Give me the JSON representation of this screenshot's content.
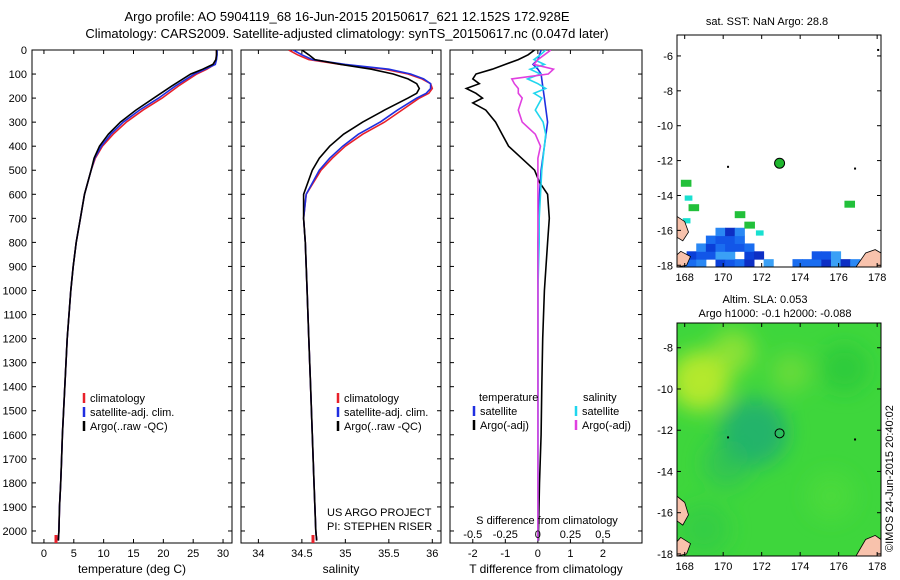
{
  "header": {
    "line1": "Argo profile: AO 5904119_68 16-Jun-2015 20150617_621 12.152S 172.928E",
    "line2": "Climatology: CARS2009. Satellite-adjusted climatology: synTS_20150617.nc (0.047d later)"
  },
  "footer": {
    "project": "US ARGO PROJECT",
    "pi": "PI: STEPHEN RISER",
    "stamp": "©IMOS 24-Jun-2015 20:40:02"
  },
  "colors": {
    "climatology": "#e8202a",
    "satellite": "#1f2ee0",
    "argo": "#000000",
    "sat_salinity": "#20d6ee",
    "argo_salinity": "#e040e0",
    "land": "#f8c2ac"
  },
  "depth_ticks": [
    "0",
    "100",
    "200",
    "300",
    "400",
    "500",
    "600",
    "700",
    "800",
    "900",
    "1000",
    "1100",
    "1200",
    "1300",
    "1400",
    "1500",
    "1600",
    "1700",
    "1800",
    "1900",
    "2000"
  ],
  "chart_data": [
    {
      "type": "line",
      "id": "temperature",
      "xlabel": "temperature (deg C)",
      "x_ticks": [
        "0",
        "5",
        "10",
        "15",
        "20",
        "25",
        "30"
      ],
      "xlim": [
        -2,
        31.5
      ],
      "ylim": [
        0,
        2050
      ],
      "legend": [
        "climatology",
        "satellite-adj. clim.",
        "Argo(..raw -QC)"
      ],
      "legend_position": "lower-center",
      "series": [
        {
          "name": "climatology",
          "color": "climatology",
          "depth": [
            0,
            20,
            40,
            60,
            80,
            100,
            150,
            200,
            250,
            300,
            350,
            400,
            450,
            500,
            600,
            700,
            800,
            900,
            1000,
            1100,
            1200,
            1300,
            1400,
            1500,
            1600,
            1700,
            1800,
            1900,
            2000,
            2040
          ],
          "values": [
            28.9,
            28.9,
            28.8,
            28.6,
            27.3,
            25.6,
            22.5,
            19.8,
            16.6,
            13.8,
            11.6,
            9.8,
            8.6,
            7.9,
            6.8,
            6.1,
            5.4,
            4.9,
            4.5,
            4.2,
            3.9,
            3.7,
            3.5,
            3.3,
            3.1,
            2.95,
            2.8,
            2.6,
            2.5,
            2.4
          ]
        },
        {
          "name": "satellite-adj. clim.",
          "color": "satellite",
          "depth": [
            0,
            20,
            40,
            60,
            80,
            100,
            150,
            200,
            250,
            300,
            350,
            400,
            450,
            500,
            600,
            700,
            800,
            900,
            1000,
            1100,
            1200,
            1300,
            1400,
            1500,
            1600,
            1700,
            1800,
            1900,
            2000,
            2040
          ],
          "values": [
            29.0,
            29.0,
            28.9,
            28.7,
            27.0,
            25.2,
            22.0,
            19.2,
            16.0,
            13.3,
            11.2,
            9.6,
            8.5,
            7.9,
            6.8,
            6.1,
            5.4,
            4.9,
            4.5,
            4.2,
            3.9,
            3.7,
            3.5,
            3.3,
            3.1,
            2.95,
            2.8,
            2.6,
            2.5,
            2.4
          ]
        },
        {
          "name": "Argo(..raw -QC)",
          "color": "argo",
          "depth": [
            0,
            20,
            40,
            60,
            80,
            100,
            150,
            200,
            250,
            300,
            350,
            400,
            450,
            500,
            600,
            700,
            800,
            900,
            1000,
            1100,
            1200,
            1300,
            1400,
            1500,
            1600,
            1700,
            1800,
            1900,
            2000,
            2040
          ],
          "values": [
            28.9,
            28.9,
            28.8,
            28.3,
            26.6,
            24.6,
            21.4,
            18.4,
            15.4,
            12.8,
            10.8,
            9.3,
            8.4,
            7.9,
            6.8,
            6.1,
            5.4,
            4.9,
            4.5,
            4.2,
            3.9,
            3.7,
            3.5,
            3.3,
            3.1,
            2.95,
            2.8,
            2.6,
            2.5,
            2.4
          ]
        }
      ]
    },
    {
      "type": "line",
      "id": "salinity",
      "xlabel": "salinity",
      "x_ticks": [
        "34",
        "34.5",
        "35",
        "35.5",
        "36"
      ],
      "x_tick_values": [
        34,
        34.5,
        35,
        35.5,
        36
      ],
      "xlim": [
        33.8,
        36.1
      ],
      "ylim": [
        0,
        2050
      ],
      "legend": [
        "climatology",
        "satellite-adj. clim.",
        "Argo(..raw -QC)"
      ],
      "legend_position": "lower-right",
      "series": [
        {
          "name": "climatology",
          "color": "climatology",
          "depth": [
            0,
            20,
            40,
            60,
            80,
            100,
            120,
            140,
            160,
            180,
            200,
            250,
            300,
            350,
            400,
            450,
            500,
            600,
            700,
            800,
            1000,
            1200,
            1400,
            1600,
            1800,
            2000,
            2040
          ],
          "values": [
            34.35,
            34.45,
            34.58,
            34.95,
            35.45,
            35.72,
            35.88,
            35.98,
            36.0,
            35.96,
            35.85,
            35.65,
            35.45,
            35.2,
            35.0,
            34.85,
            34.72,
            34.55,
            34.52,
            34.54,
            34.56,
            34.58,
            34.6,
            34.62,
            34.64,
            34.66,
            34.67
          ]
        },
        {
          "name": "satellite-adj. clim.",
          "color": "satellite",
          "depth": [
            0,
            20,
            40,
            60,
            80,
            100,
            120,
            140,
            160,
            180,
            200,
            250,
            300,
            350,
            400,
            450,
            500,
            600,
            700,
            800,
            1000,
            1200,
            1400,
            1600,
            1800,
            2000,
            2040
          ],
          "values": [
            34.4,
            34.5,
            34.62,
            35.0,
            35.5,
            35.75,
            35.9,
            35.98,
            35.98,
            35.93,
            35.82,
            35.6,
            35.4,
            35.15,
            34.97,
            34.82,
            34.7,
            34.55,
            34.52,
            34.54,
            34.56,
            34.58,
            34.6,
            34.62,
            34.64,
            34.66,
            34.67
          ]
        },
        {
          "name": "Argo(..raw -QC)",
          "color": "argo",
          "depth": [
            0,
            20,
            40,
            60,
            80,
            100,
            120,
            140,
            160,
            180,
            200,
            250,
            300,
            350,
            400,
            450,
            500,
            600,
            700,
            800,
            1000,
            1200,
            1400,
            1600,
            1800,
            2000,
            2040
          ],
          "values": [
            34.5,
            34.58,
            34.65,
            34.95,
            35.3,
            35.55,
            35.72,
            35.82,
            35.85,
            35.82,
            35.72,
            35.45,
            35.2,
            34.98,
            34.82,
            34.7,
            34.62,
            34.52,
            34.52,
            34.54,
            34.56,
            34.58,
            34.6,
            34.62,
            34.64,
            34.66,
            34.67
          ]
        }
      ]
    },
    {
      "type": "line",
      "id": "differences",
      "xlabel": "T difference from climatology",
      "xlabel_top": "S difference from climatology",
      "x_ticks": [
        "-2",
        "-1",
        "0",
        "1",
        "2"
      ],
      "x_tick_values": [
        -2,
        -1,
        0,
        1,
        2
      ],
      "s_ticks": [
        "-0.5",
        "-0.25",
        "0",
        "0.25",
        "0.5"
      ],
      "s_tick_values": [
        -0.5,
        -0.25,
        0,
        0.25,
        0.5
      ],
      "xlim": [
        -2.7,
        3.2
      ],
      "ylim": [
        0,
        2050
      ],
      "legend_headers": [
        "temperature",
        "salinity"
      ],
      "legend": [
        "satellite",
        "Argo(-adj)",
        "satellite",
        "Argo(-adj)"
      ],
      "legend_position": "lower-center",
      "series": [
        {
          "name": "temperature satellite",
          "color": "satellite",
          "depth": [
            0,
            20,
            40,
            60,
            80,
            100,
            150,
            200,
            300,
            400,
            500,
            600,
            800,
            1000,
            1500,
            2000,
            2040
          ],
          "values": [
            0.1,
            0.05,
            0.0,
            -0.15,
            0.0,
            0.1,
            0.15,
            0.2,
            0.3,
            0.2,
            0.1,
            0.05,
            0.0,
            0.0,
            0.0,
            0.0,
            0.0
          ]
        },
        {
          "name": "temperature Argo(-adj)",
          "color": "argo",
          "depth": [
            0,
            20,
            40,
            60,
            80,
            100,
            120,
            140,
            160,
            180,
            200,
            220,
            250,
            300,
            350,
            400,
            450,
            500,
            550,
            600,
            700,
            800,
            900,
            1000,
            1200,
            1400,
            1600,
            1800,
            2000,
            2040
          ],
          "values": [
            -0.1,
            -0.3,
            -0.6,
            -1.0,
            -1.4,
            -1.9,
            -2.0,
            -1.8,
            -2.2,
            -1.9,
            -1.7,
            -2.0,
            -1.6,
            -1.3,
            -1.1,
            -0.9,
            -0.5,
            -0.1,
            0.05,
            0.3,
            0.35,
            0.3,
            0.25,
            0.2,
            0.15,
            0.12,
            0.1,
            0.05,
            0.02,
            0.02
          ]
        },
        {
          "name": "salinity satellite",
          "color": "sat_salinity",
          "depth": [
            0,
            20,
            40,
            60,
            80,
            100,
            120,
            140,
            160,
            180,
            200,
            250,
            300,
            350,
            400,
            450,
            500,
            600,
            700,
            800,
            1000,
            1500,
            2000,
            2040
          ],
          "values": [
            0.06,
            0.02,
            -0.03,
            0.05,
            -0.06,
            0.02,
            -0.08,
            0.0,
            0.06,
            -0.03,
            0.03,
            -0.02,
            0.04,
            0.06,
            0.05,
            0.04,
            0.03,
            0.02,
            0.01,
            0.01,
            0.0,
            0.0,
            0.0,
            0.0
          ]
        },
        {
          "name": "salinity Argo(-adj)",
          "color": "argo_salinity",
          "depth": [
            0,
            20,
            40,
            60,
            80,
            100,
            120,
            140,
            160,
            180,
            200,
            250,
            300,
            350,
            400,
            450,
            500,
            600,
            700,
            800,
            1000,
            1500,
            2000,
            2040
          ],
          "values": [
            0.1,
            0.05,
            0.0,
            -0.03,
            0.12,
            0.08,
            -0.2,
            -0.18,
            -0.15,
            -0.15,
            -0.12,
            -0.15,
            -0.12,
            -0.02,
            0.02,
            0.0,
            0.0,
            0.0,
            0.0,
            0.0,
            0.0,
            0.0,
            0.0,
            0.0
          ]
        }
      ]
    },
    {
      "type": "heatmap",
      "id": "sst_map",
      "title": "sat. SST: NaN Argo: 28.8",
      "x_ticks": [
        "168",
        "170",
        "172",
        "174",
        "176",
        "178"
      ],
      "x_tick_values": [
        168,
        170,
        172,
        174,
        176,
        178
      ],
      "y_ticks": [
        "-6",
        "-8",
        "-10",
        "-12",
        "-14",
        "-16",
        "-18"
      ],
      "y_tick_values": [
        -6,
        -8,
        -10,
        -12,
        -14,
        -16,
        -18
      ],
      "xlim": [
        167.6,
        178.2
      ],
      "ylim": [
        -18.1,
        -4.8
      ],
      "argo_position": [
        172.93,
        -12.15
      ]
    },
    {
      "type": "heatmap",
      "id": "sla_map",
      "title": "Altim. SLA: 0.053",
      "subtitle": "Argo h1000: -0.1 h2000: -0.088",
      "x_ticks": [
        "168",
        "170",
        "172",
        "174",
        "176",
        "178"
      ],
      "x_tick_values": [
        168,
        170,
        172,
        174,
        176,
        178
      ],
      "y_ticks": [
        "-8",
        "-10",
        "-12",
        "-14",
        "-16",
        "-18"
      ],
      "y_tick_values": [
        -8,
        -10,
        -12,
        -14,
        -16,
        -18
      ],
      "xlim": [
        167.6,
        178.2
      ],
      "ylim": [
        -18.1,
        -6.8
      ],
      "argo_position": [
        172.93,
        -12.15
      ]
    }
  ]
}
